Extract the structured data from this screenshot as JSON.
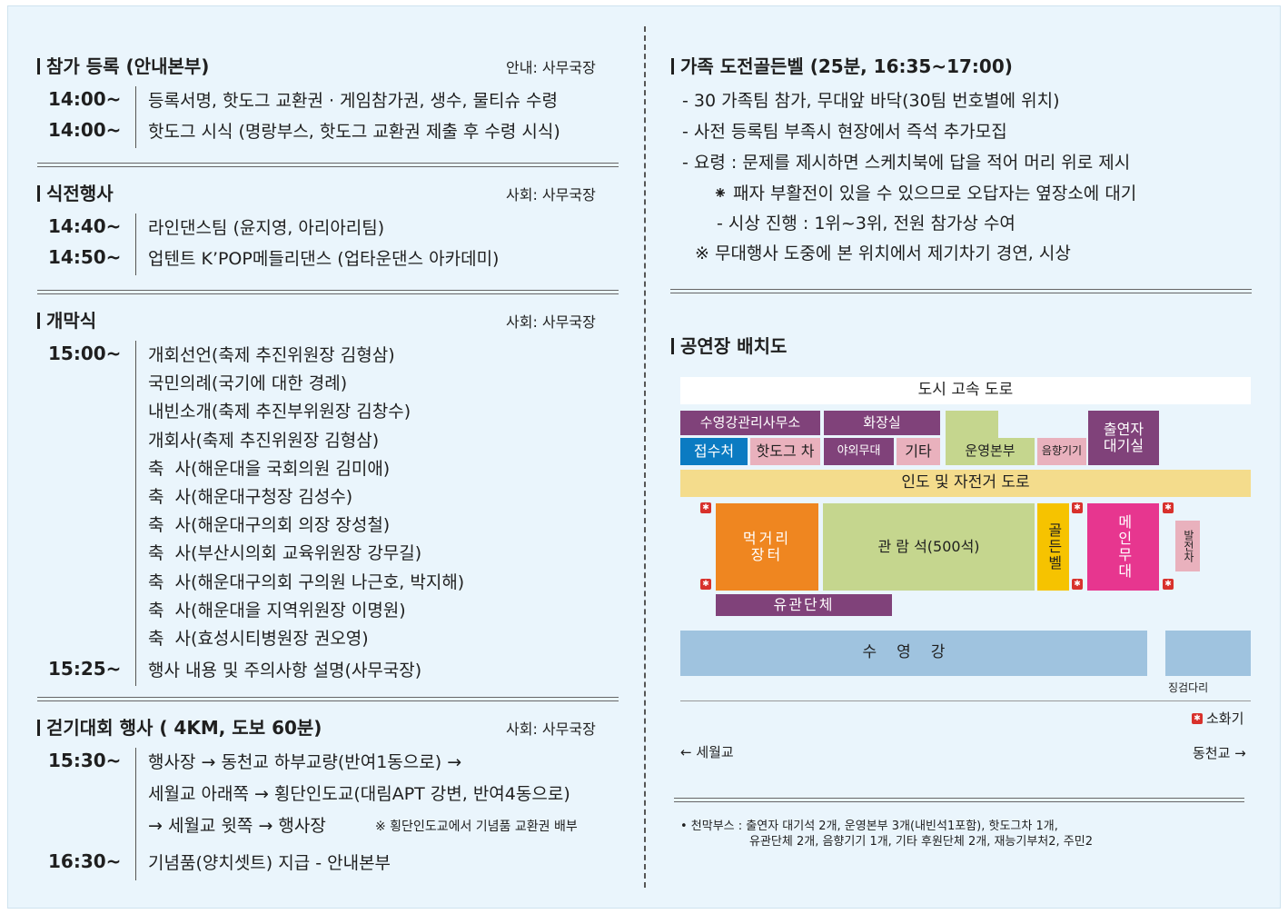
{
  "left": {
    "sections": [
      {
        "title": "참가 등록 (안내본부)",
        "host": "안내: 사무국장",
        "rows": [
          {
            "time": "14:00~",
            "text": "등록서명, 핫도그 교환권 · 게임참가권, 생수, 물티슈 수령"
          },
          {
            "time": "14:00~",
            "text": "핫도그 시식 (명랑부스, 핫도그 교환권 제출 후 수령 시식)"
          }
        ]
      },
      {
        "title": "식전행사",
        "host": "사회: 사무국장",
        "rows": [
          {
            "time": "14:40~",
            "text": "라인댄스팀 (윤지영, 아리아리팀)"
          },
          {
            "time": "14:50~",
            "text": "업텐트 K’POP메들리댄스 (업타운댄스 아카데미)"
          }
        ]
      },
      {
        "title": "개막식",
        "host": "사회: 사무국장",
        "time1": "15:00~",
        "items": [
          "개회선언(축제 추진위원장 김형삼)",
          "국민의례(국기에 대한 경례)",
          "내빈소개(축제 추진부위원장 김창수)",
          "개회사(축제 추진위원장 김형삼)",
          "축  사(해운대을 국회의원 김미애)",
          "축  사(해운대구청장 김성수)",
          "축  사(해운대구의회 의장 장성철)",
          "축  사(부산시의회 교육위원장 강무길)",
          "축  사(해운대구의회 구의원 나근호, 박지해)",
          "축  사(해운대을 지역위원장 이명원)",
          "축  사(효성시티병원장 권오영)"
        ],
        "time2": "15:25~",
        "last": "행사 내용 및 주의사항 설명(사무국장)"
      },
      {
        "title": "걷기대회 행사 ( 4KM, 도보 60분)",
        "host": "사회: 사무국장",
        "time1": "15:30~",
        "line1": "행사장 → 동천교 하부교량(반여1동으로) →",
        "line2": "세월교 아래쪽 → 횡단인도교(대림APT 강변, 반여4동으로)",
        "line3": "→ 세월교 윗쪽 → 행사장",
        "note": "※ 횡단인도교에서 기념품 교환권 배부",
        "time2": "16:30~",
        "line4": "기념품(양치셋트) 지급 - 안내본부"
      }
    ]
  },
  "right": {
    "goldenbell": {
      "title": "가족 도전골든벨 (25분, 16:35~17:00)",
      "lines": [
        "- 30 가족팀 참가, 무대앞 바닥(30팀 번호별에 위치)",
        "- 사전 등록팀 부족시 현장에서 즉석 추가모집",
        "- 요령 : 문제를 제시하면 스케치북에 답을 적어 머리 위로 제시",
        "⁕ 패자 부활전이 있을 수 있으므로 오답자는 옆장소에 대기",
        "- 시상 진행 : 1위~3위, 전원 참가상 수여",
        "※ 무대행사 도중에 본 위치에서 제기차기 경연, 시상"
      ]
    },
    "map": {
      "title": "공연장 배치도",
      "labels": {
        "highway": "도시 고속 도로",
        "office": "수영강관리사무소",
        "reception": "접수처",
        "hotdog": "핫도그 차",
        "restroom": "화장실",
        "outdoor": "야외무대",
        "other": "기타",
        "hq": "운영본부",
        "sound": "음향기기",
        "waiting": "출연자\n대기실",
        "sidewalk": "인도 및 자전거 도로",
        "food": "먹거리\n장터",
        "seats": "관  람  석(500석)",
        "bell": "골든벨",
        "stage": "메인무대",
        "generator": "발전차",
        "orgs": "유관단체",
        "river": "수영강",
        "stepping": "징검다리",
        "legend": "소화기",
        "left_dir": "← 세월교",
        "right_dir": "동천교 →"
      }
    },
    "footnote": {
      "line1": "• 천막부스 : 출연자 대기석 2개, 운영본부 3개(내빈석1포함), 핫도그차 1개,",
      "line2": "유관단체 2개, 음향기기 1개,  기타 후원단체 2개, 재능기부처2, 주민2"
    }
  }
}
